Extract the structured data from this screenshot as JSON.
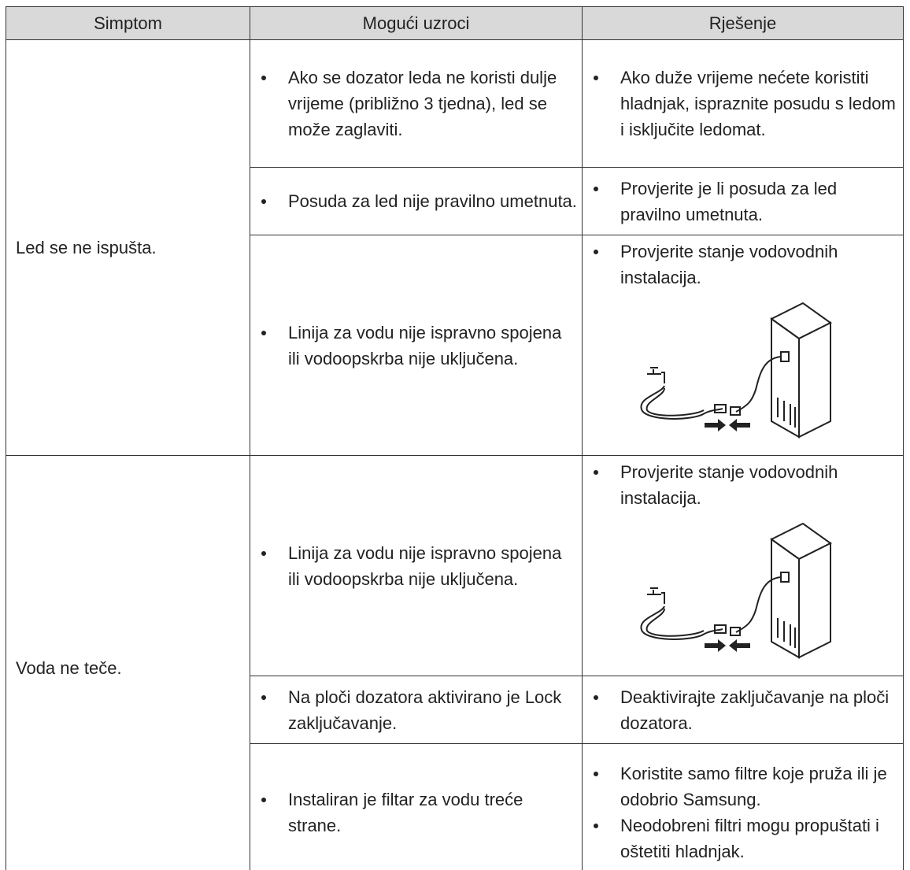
{
  "table": {
    "header": [
      "Simptom",
      "Mogući uzroci",
      "Rješenje"
    ],
    "groups": [
      {
        "symptom": "Led se ne ispušta.",
        "rows": [
          {
            "causes": [
              "Ako se dozator leda ne koristi dulje vrijeme (približno 3 tjedna), led se može zaglaviti."
            ],
            "solutions": [
              "Ako duže vrijeme nećete koristiti hladnjak, ispraznite posudu s ledom i isključite ledomat."
            ]
          },
          {
            "causes": [
              "Posuda za led nije pravilno umetnuta."
            ],
            "solutions": [
              "Provjerite je li posuda za led pravilno umetnuta."
            ]
          },
          {
            "causes": [
              "Linija za vodu nije ispravno spojena ili vodoopskrba nije uključena."
            ],
            "solutions": [
              "Provjerite stanje vodovodnih instalacija."
            ]
          }
        ]
      },
      {
        "symptom": "Voda ne teče.",
        "rows": [
          {
            "causes": [
              "Linija za vodu nije ispravno spojena ili vodoopskrba nije uključena."
            ],
            "solutions": [
              "Provjerite stanje vodovodnih instalacija."
            ]
          },
          {
            "causes": [
              "Na ploči dozatora aktivirano je Lock zaključavanje."
            ],
            "solutions": [
              "Deaktivirajte zaključavanje na ploči dozatora."
            ]
          },
          {
            "causes": [
              "Instaliran je filtar za vodu treće strane."
            ],
            "solutions": [
              "Koristite samo filtre koje pruža ili je odobrio Samsung.",
              "Neodobreni filtri mogu propuštati i oštetiti hladnjak."
            ]
          }
        ]
      }
    ]
  }
}
